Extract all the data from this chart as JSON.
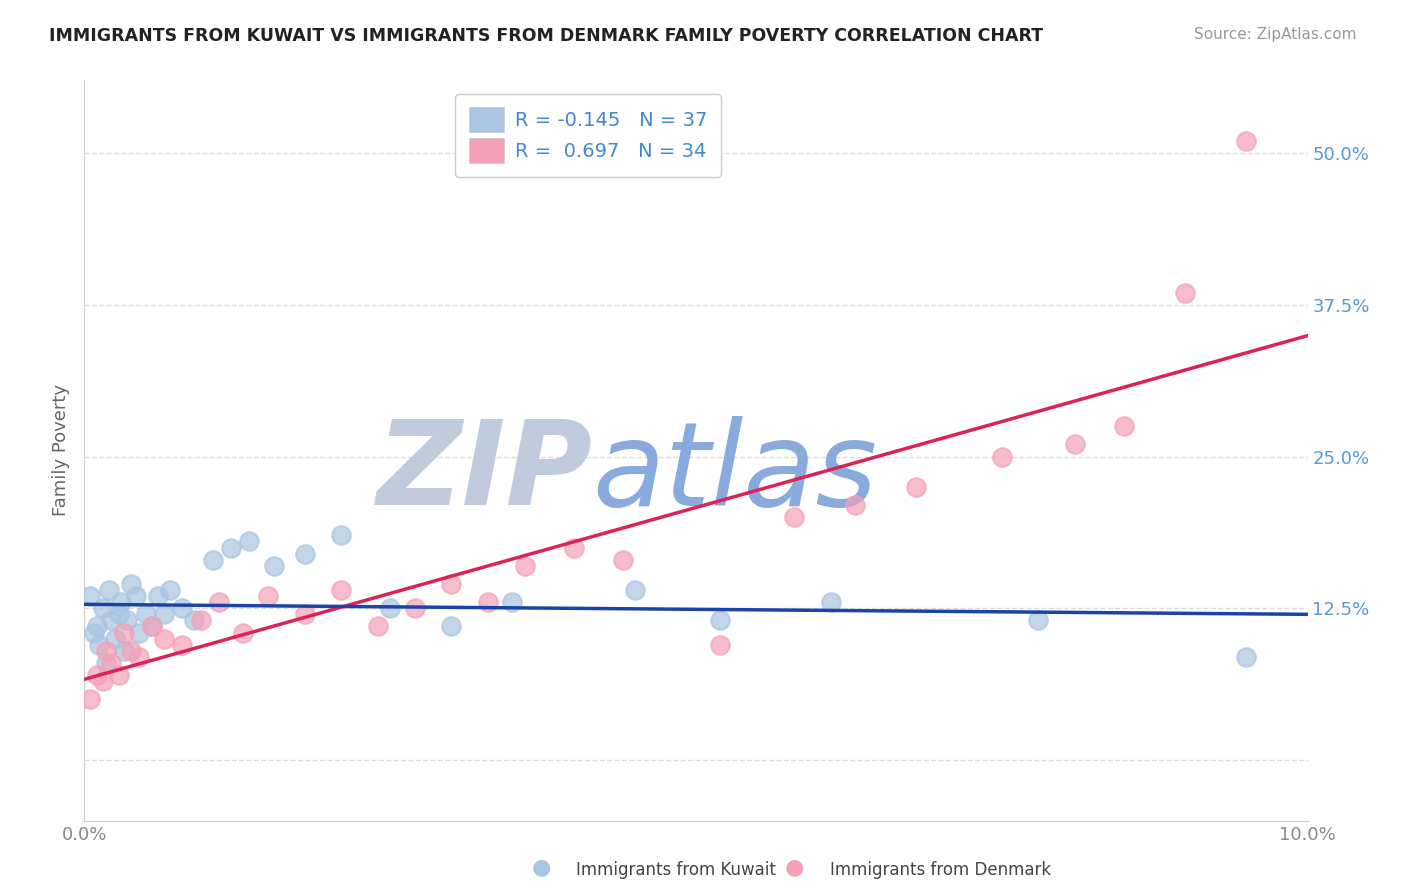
{
  "title": "IMMIGRANTS FROM KUWAIT VS IMMIGRANTS FROM DENMARK FAMILY POVERTY CORRELATION CHART",
  "source": "Source: ZipAtlas.com",
  "ylabel": "Family Poverty",
  "xlim": [
    0.0,
    10.0
  ],
  "ylim": [
    -5.0,
    56.0
  ],
  "yticks": [
    0.0,
    12.5,
    25.0,
    37.5,
    50.0
  ],
  "ytick_labels": [
    "",
    "12.5%",
    "25.0%",
    "37.5%",
    "50.0%"
  ],
  "xticks": [
    0.0,
    2.5,
    5.0,
    7.5,
    10.0
  ],
  "xtick_labels": [
    "0.0%",
    "",
    "",
    "",
    "10.0%"
  ],
  "kuwait_R": -0.145,
  "kuwait_N": 37,
  "denmark_R": 0.697,
  "denmark_N": 34,
  "kuwait_color": "#a8c4e0",
  "denmark_color": "#f4a0b8",
  "kuwait_line_color": "#1a44aa",
  "denmark_line_color": "#dd2255",
  "kuwait_x": [
    0.05,
    0.08,
    0.1,
    0.12,
    0.15,
    0.18,
    0.2,
    0.22,
    0.25,
    0.28,
    0.3,
    0.32,
    0.35,
    0.38,
    0.42,
    0.45,
    0.5,
    0.55,
    0.6,
    0.65,
    0.7,
    0.8,
    0.9,
    1.05,
    1.2,
    1.35,
    1.55,
    1.8,
    2.1,
    2.5,
    3.0,
    3.5,
    4.5,
    5.2,
    6.1,
    7.8,
    9.5
  ],
  "kuwait_y": [
    13.5,
    10.5,
    11.0,
    9.5,
    12.5,
    8.0,
    14.0,
    11.5,
    10.0,
    12.0,
    13.0,
    9.0,
    11.5,
    14.5,
    13.5,
    10.5,
    12.0,
    11.0,
    13.5,
    12.0,
    14.0,
    12.5,
    11.5,
    16.5,
    17.5,
    18.0,
    16.0,
    17.0,
    18.5,
    12.5,
    11.0,
    13.0,
    14.0,
    11.5,
    13.0,
    11.5,
    8.5
  ],
  "denmark_x": [
    0.05,
    0.1,
    0.15,
    0.18,
    0.22,
    0.28,
    0.32,
    0.38,
    0.45,
    0.55,
    0.65,
    0.8,
    0.95,
    1.1,
    1.3,
    1.5,
    1.8,
    2.1,
    2.4,
    2.7,
    3.0,
    3.3,
    3.6,
    4.0,
    4.4,
    5.2,
    5.8,
    6.3,
    6.8,
    7.5,
    8.1,
    8.5,
    9.0,
    9.5
  ],
  "denmark_y": [
    5.0,
    7.0,
    6.5,
    9.0,
    8.0,
    7.0,
    10.5,
    9.0,
    8.5,
    11.0,
    10.0,
    9.5,
    11.5,
    13.0,
    10.5,
    13.5,
    12.0,
    14.0,
    11.0,
    12.5,
    14.5,
    13.0,
    16.0,
    17.5,
    16.5,
    9.5,
    20.0,
    21.0,
    22.5,
    25.0,
    26.0,
    27.5,
    38.5,
    51.0
  ],
  "background_color": "#ffffff",
  "watermark_zip": "ZIP",
  "watermark_atlas": "atlas",
  "watermark_color_zip": "#c0ccdd",
  "watermark_color_atlas": "#88aadd",
  "grid_color": "#dddddd",
  "title_color": "#222222",
  "title_fontsize": 12.5,
  "source_color": "#999999",
  "tick_color_y": "#5599dd",
  "tick_color_x": "#888888"
}
